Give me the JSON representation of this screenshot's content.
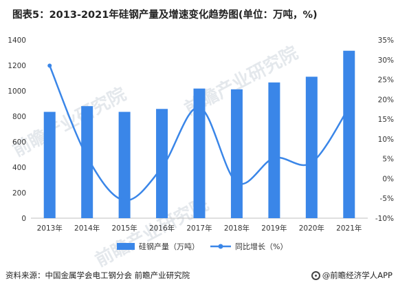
{
  "title": "图表5：2013-2021年硅钢产量及增速变化趋势图(单位：万吨，%)",
  "source": "资料来源：中国金属学会电工钢分会 前瞻产业研究院",
  "brand": "@前瞻经济学人APP",
  "watermark": "前瞻产业研究院",
  "colors": {
    "bar": "#3a86e8",
    "line": "#3a86e8",
    "axis": "#bfbfbf",
    "text": "#333333"
  },
  "chart_data": {
    "type": "bar",
    "categories": [
      "2013年",
      "2014年",
      "2015年",
      "2016年",
      "2017年",
      "2018年",
      "2019年",
      "2020年",
      "2021年"
    ],
    "series": [
      {
        "name": "硅钢产量（万吨）",
        "type": "bar",
        "axis": "left",
        "values": [
          835,
          880,
          835,
          858,
          1018,
          1012,
          1066,
          1111,
          1315
        ]
      },
      {
        "name": "同比增长（%）",
        "type": "line",
        "axis": "right",
        "smooth": true,
        "values": [
          28.5,
          5.5,
          -5.5,
          2.8,
          18.0,
          -1.0,
          5.2,
          4.0,
          18.0
        ]
      }
    ],
    "left_axis": {
      "ylim": [
        0,
        1400
      ],
      "ticks": [
        "0",
        "200",
        "400",
        "600",
        "800",
        "1000",
        "1200",
        "1400"
      ]
    },
    "right_axis": {
      "ylim": [
        -10,
        35
      ],
      "ticks": [
        "-10%",
        "-5%",
        "0%",
        "5%",
        "10%",
        "15%",
        "20%",
        "25%",
        "30%",
        "35%"
      ]
    },
    "legend_position": "bottom",
    "grid": false
  }
}
